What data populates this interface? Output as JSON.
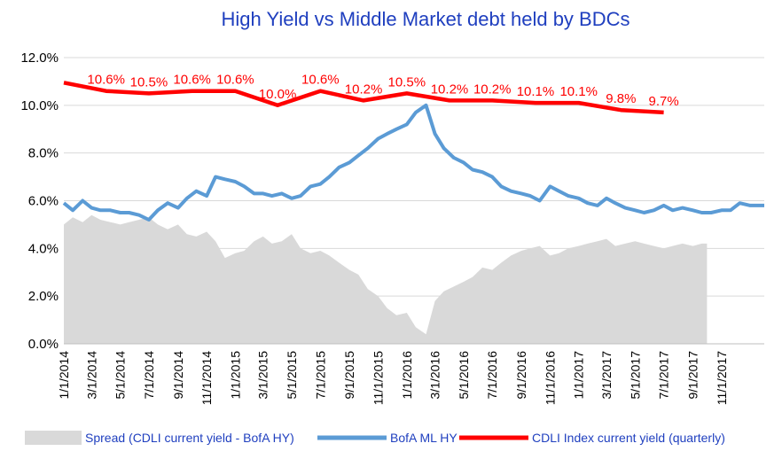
{
  "chart_data": {
    "type": "line",
    "title": "High Yield  vs  Middle Market debt held by BDCs",
    "ylim": [
      0,
      12
    ],
    "y_tick_labels": [
      "0.0%",
      "2.0%",
      "4.0%",
      "6.0%",
      "8.0%",
      "10.0%",
      "12.0%"
    ],
    "x_start": "2014-01-01",
    "x_end": "2018-01-31",
    "x_tick_labels": [
      "1/1/2014",
      "3/1/2014",
      "5/1/2014",
      "7/1/2014",
      "9/1/2014",
      "11/1/2014",
      "1/1/2015",
      "3/1/2015",
      "5/1/2015",
      "7/1/2015",
      "9/1/2015",
      "11/1/2015",
      "1/1/2016",
      "3/1/2016",
      "5/1/2016",
      "7/1/2016",
      "9/1/2016",
      "11/1/2016",
      "1/1/2017",
      "3/1/2017",
      "5/1/2017",
      "7/1/2017",
      "9/1/2017",
      "11/1/2017"
    ],
    "x_tick_dates": [
      "2014-01-01",
      "2014-03-01",
      "2014-05-01",
      "2014-07-01",
      "2014-09-01",
      "2014-11-01",
      "2015-01-01",
      "2015-03-01",
      "2015-05-01",
      "2015-07-01",
      "2015-09-01",
      "2015-11-01",
      "2016-01-01",
      "2016-03-01",
      "2016-05-01",
      "2016-07-01",
      "2016-09-01",
      "2016-11-01",
      "2017-01-01",
      "2017-03-01",
      "2017-05-01",
      "2017-07-01",
      "2017-09-01",
      "2017-11-01"
    ],
    "gridlines": true,
    "legend_position": "bottom",
    "series": [
      {
        "name": "Spread (CDLI current yield - BofA HY)",
        "kind": "area",
        "color": "#d9d9d9",
        "x": [
          "2014-01-01",
          "2014-01-20",
          "2014-02-10",
          "2014-03-01",
          "2014-03-20",
          "2014-04-10",
          "2014-05-01",
          "2014-05-20",
          "2014-06-10",
          "2014-07-01",
          "2014-07-20",
          "2014-08-10",
          "2014-09-01",
          "2014-09-20",
          "2014-10-10",
          "2014-11-01",
          "2014-11-20",
          "2014-12-10",
          "2015-01-01",
          "2015-01-20",
          "2015-02-10",
          "2015-03-01",
          "2015-03-20",
          "2015-04-10",
          "2015-05-01",
          "2015-05-20",
          "2015-06-10",
          "2015-07-01",
          "2015-07-20",
          "2015-08-10",
          "2015-09-01",
          "2015-09-20",
          "2015-10-10",
          "2015-11-01",
          "2015-11-20",
          "2015-12-10",
          "2016-01-01",
          "2016-01-20",
          "2016-02-11",
          "2016-03-01",
          "2016-03-20",
          "2016-04-10",
          "2016-05-01",
          "2016-05-20",
          "2016-06-10",
          "2016-07-01",
          "2016-07-20",
          "2016-08-10",
          "2016-09-01",
          "2016-09-20",
          "2016-10-10",
          "2016-11-01",
          "2016-11-20",
          "2016-12-10",
          "2017-01-01",
          "2017-01-20",
          "2017-02-10",
          "2017-03-01",
          "2017-03-20",
          "2017-04-10",
          "2017-05-01",
          "2017-05-20",
          "2017-06-10",
          "2017-07-01",
          "2017-07-20",
          "2017-08-10",
          "2017-09-01",
          "2017-09-20",
          "2017-10-01"
        ],
        "values": [
          5.0,
          5.3,
          5.1,
          5.4,
          5.2,
          5.1,
          5.0,
          5.1,
          5.2,
          5.3,
          5.0,
          4.8,
          5.0,
          4.6,
          4.5,
          4.7,
          4.3,
          3.6,
          3.8,
          3.9,
          4.3,
          4.5,
          4.2,
          4.3,
          4.6,
          4.0,
          3.8,
          3.9,
          3.7,
          3.4,
          3.1,
          2.9,
          2.3,
          2.0,
          1.5,
          1.2,
          1.3,
          0.7,
          0.4,
          1.8,
          2.2,
          2.4,
          2.6,
          2.8,
          3.2,
          3.1,
          3.4,
          3.7,
          3.9,
          4.0,
          4.1,
          3.7,
          3.8,
          4.0,
          4.1,
          4.2,
          4.3,
          4.4,
          4.1,
          4.2,
          4.3,
          4.2,
          4.1,
          4.0,
          4.1,
          4.2,
          4.1,
          4.2,
          4.2
        ]
      },
      {
        "name": "BofA ML HY",
        "kind": "line",
        "color": "#5b9bd5",
        "x": [
          "2014-01-01",
          "2014-01-20",
          "2014-02-10",
          "2014-03-01",
          "2014-03-20",
          "2014-04-10",
          "2014-05-01",
          "2014-05-20",
          "2014-06-10",
          "2014-07-01",
          "2014-07-20",
          "2014-08-10",
          "2014-09-01",
          "2014-09-20",
          "2014-10-10",
          "2014-11-01",
          "2014-11-20",
          "2014-12-10",
          "2015-01-01",
          "2015-01-20",
          "2015-02-10",
          "2015-03-01",
          "2015-03-20",
          "2015-04-10",
          "2015-05-01",
          "2015-05-20",
          "2015-06-10",
          "2015-07-01",
          "2015-07-20",
          "2015-08-10",
          "2015-09-01",
          "2015-09-20",
          "2015-10-10",
          "2015-11-01",
          "2015-11-20",
          "2015-12-10",
          "2016-01-01",
          "2016-01-20",
          "2016-02-11",
          "2016-03-01",
          "2016-03-20",
          "2016-04-10",
          "2016-05-01",
          "2016-05-20",
          "2016-06-10",
          "2016-07-01",
          "2016-07-20",
          "2016-08-10",
          "2016-09-01",
          "2016-09-20",
          "2016-10-10",
          "2016-11-01",
          "2016-11-20",
          "2016-12-10",
          "2017-01-01",
          "2017-01-20",
          "2017-02-10",
          "2017-03-01",
          "2017-03-20",
          "2017-04-10",
          "2017-05-01",
          "2017-05-20",
          "2017-06-10",
          "2017-07-01",
          "2017-07-20",
          "2017-08-10",
          "2017-09-01",
          "2017-09-20",
          "2017-10-10",
          "2017-11-01",
          "2017-11-20",
          "2017-12-10",
          "2018-01-01",
          "2018-01-31"
        ],
        "values": [
          5.9,
          5.6,
          6.0,
          5.7,
          5.6,
          5.6,
          5.5,
          5.5,
          5.4,
          5.2,
          5.6,
          5.9,
          5.7,
          6.1,
          6.4,
          6.2,
          7.0,
          6.9,
          6.8,
          6.6,
          6.3,
          6.3,
          6.2,
          6.3,
          6.1,
          6.2,
          6.6,
          6.7,
          7.0,
          7.4,
          7.6,
          7.9,
          8.2,
          8.6,
          8.8,
          9.0,
          9.2,
          9.7,
          10.0,
          8.8,
          8.2,
          7.8,
          7.6,
          7.3,
          7.2,
          7.0,
          6.6,
          6.4,
          6.3,
          6.2,
          6.0,
          6.6,
          6.4,
          6.2,
          6.1,
          5.9,
          5.8,
          6.1,
          5.9,
          5.7,
          5.6,
          5.5,
          5.6,
          5.8,
          5.6,
          5.7,
          5.6,
          5.5,
          5.5,
          5.6,
          5.6,
          5.9,
          5.8,
          5.8
        ]
      },
      {
        "name": "CDLI Index current yield (quarterly)",
        "kind": "line",
        "color": "#ff0000",
        "x": [
          "2014-01-01",
          "2014-04-01",
          "2014-07-01",
          "2014-10-01",
          "2015-01-01",
          "2015-04-01",
          "2015-07-01",
          "2015-10-01",
          "2016-01-01",
          "2016-04-01",
          "2016-07-01",
          "2016-10-01",
          "2017-01-01",
          "2017-04-01",
          "2017-07-01"
        ],
        "values": [
          10.95,
          10.6,
          10.5,
          10.6,
          10.6,
          10.0,
          10.6,
          10.2,
          10.5,
          10.2,
          10.2,
          10.1,
          10.1,
          9.8,
          9.7
        ],
        "data_labels": [
          "",
          "10.6%",
          "10.5%",
          "10.6%",
          "10.6%",
          "10.0%",
          "10.6%",
          "10.2%",
          "10.5%",
          "10.2%",
          "10.2%",
          "10.1%",
          "10.1%",
          "9.8%",
          "9.7%"
        ]
      }
    ]
  }
}
